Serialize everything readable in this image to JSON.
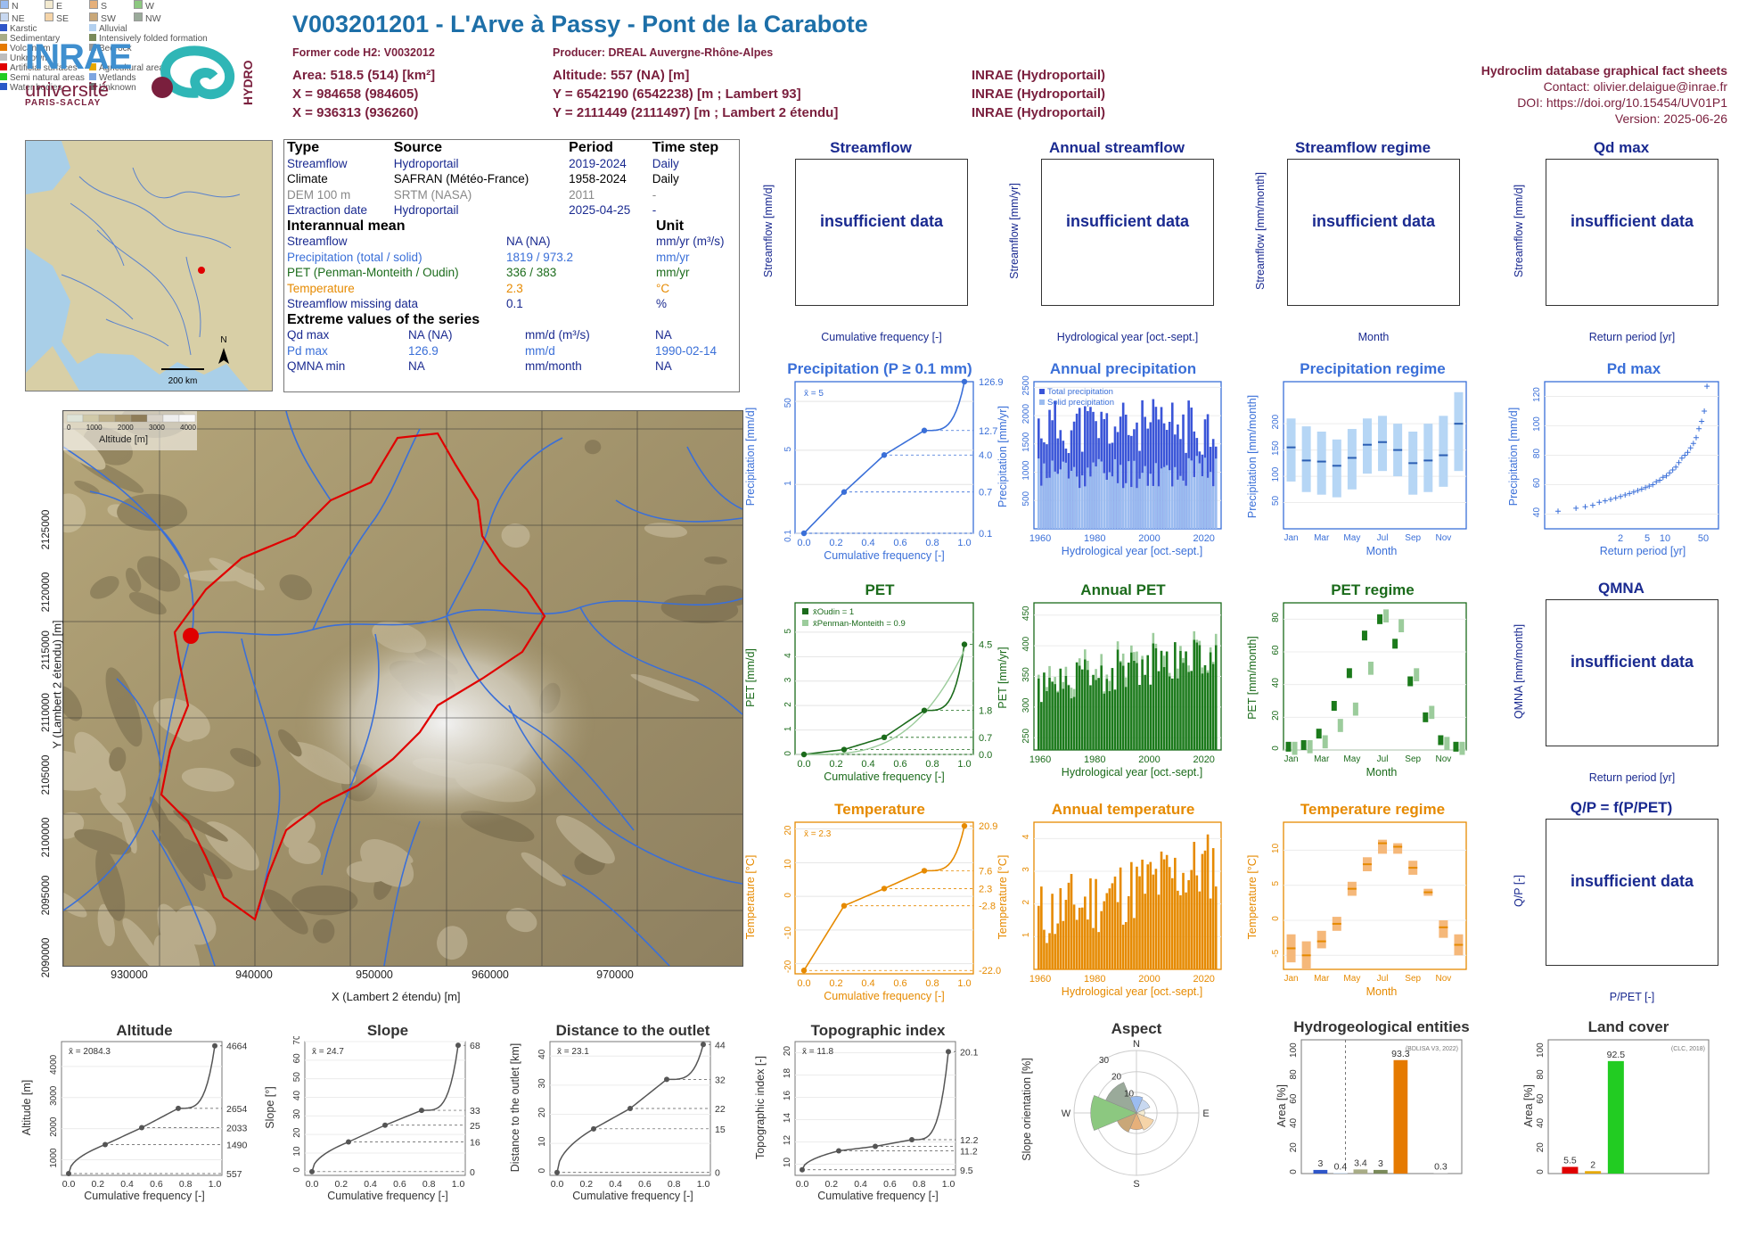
{
  "header": {
    "title": "V003201201 - L'Arve à Passy - Pont de la Carabote",
    "former_code": "Former code H2: V0032012",
    "producer": "Producer: DREAL Auvergne-Rhône-Alpes",
    "area": "Area: 518.5 (514) [km²]",
    "x93": "X = 984658 (984605)",
    "x2e": "X = 936313 (936260)",
    "altitude": "Altitude: 557 (NA) [m]",
    "y93": "Y = 6542190 (6542238) [m ; Lambert 93]",
    "y2e": "Y = 2111449 (2111497) [m ; Lambert 2 étendu]",
    "src1": "INRAE (Hydroportail)",
    "src2": "INRAE (Hydroportail)",
    "src3": "INRAE (Hydroportail)",
    "db": "Hydroclim database graphical fact sheets",
    "contact": "Contact: olivier.delaigue@inrae.fr",
    "doi": "DOI: https://doi.org/10.15454/UV01P1",
    "version": "Version: 2025-06-26"
  },
  "logos": {
    "inrae": "INRAE",
    "universite": "université",
    "paris_saclay": "PARIS-SACLAY",
    "hydro": "HYDRO"
  },
  "inset_map": {
    "north": "N",
    "scale": "200 km",
    "colors": {
      "sea": "#a9cfe8",
      "land": "#d8cfa6",
      "rivers": "#3a6fd8",
      "station": "#e00000"
    }
  },
  "info": {
    "headers": [
      "Type",
      "Source",
      "Period",
      "Time step"
    ],
    "rows": [
      [
        "Streamflow",
        "Hydroportail",
        "2019-2024",
        "Daily"
      ],
      [
        "Climate",
        "SAFRAN (Météo-France)",
        "1958-2024",
        "Daily"
      ],
      [
        "DEM 100 m",
        "SRTM (NASA)",
        "2011",
        "-"
      ],
      [
        "Extraction date",
        "Hydroportail",
        "2025-04-25",
        "-"
      ]
    ],
    "mean_title": "Interannual mean",
    "unit_title": "Unit",
    "means": [
      [
        "Streamflow",
        "NA (NA)",
        "mm/yr (m³/s)"
      ],
      [
        "Precipitation (total / solid)",
        "1819 / 973.2",
        "mm/yr"
      ],
      [
        "PET (Penman-Monteith / Oudin)",
        "336 / 383",
        "mm/yr"
      ],
      [
        "Temperature",
        "2.3",
        "°C"
      ],
      [
        "Streamflow missing data",
        "0.1",
        "%"
      ]
    ],
    "extreme_title": "Extreme values of the series",
    "extremes": [
      [
        "Qd max",
        "NA (NA)",
        "mm/d (m³/s)",
        "NA"
      ],
      [
        "Pd max",
        "126.9",
        "mm/d",
        "1990-02-14"
      ],
      [
        "QMNA min",
        "NA",
        "mm/month",
        "NA"
      ]
    ]
  },
  "big_map": {
    "xlabel": "X (Lambert 2 étendu) [m]",
    "ylabel": "Y (Lambert 2 étendu) [m]",
    "xticks": [
      "930000",
      "940000",
      "950000",
      "960000",
      "970000"
    ],
    "yticks": [
      "2090000",
      "2095000",
      "2100000",
      "2105000",
      "2110000",
      "2115000",
      "2120000",
      "2125000"
    ],
    "legend_title": "Altitude [m]",
    "legend_ticks": [
      "0",
      "1000",
      "2000",
      "3000",
      "4000"
    ],
    "colors": {
      "basin": "#e00000",
      "river": "#3a6fd8"
    }
  },
  "panels": {
    "streamflow": {
      "title": "Streamflow",
      "ylabel": "Streamflow [mm/d]",
      "xlabel": "Cumulative frequency [-]",
      "msg": "insufficient data"
    },
    "annual_streamflow": {
      "title": "Annual streamflow",
      "ylabel": "Streamflow [mm/yr]",
      "xlabel": "Hydrological year [oct.-sept.]",
      "msg": "insufficient data"
    },
    "streamflow_regime": {
      "title": "Streamflow regime",
      "ylabel": "Streamflow [mm/month]",
      "xlabel": "Month",
      "msg": "insufficient data"
    },
    "qd_max": {
      "title": "Qd max",
      "ylabel": "Streamflow [mm/d]",
      "xlabel": "Return period [yr]",
      "msg": "insufficient data"
    },
    "precip": {
      "title": "Precipitation (P ≥ 0.1 mm)",
      "ylabel": "Precipitation [mm/d]",
      "xlabel": "Cumulative frequency [-]",
      "mean": "x̄ = 5"
    },
    "annual_precip": {
      "title": "Annual precipitation",
      "ylabel": "Precipitation [mm/yr]",
      "xlabel": "Hydrological year [oct.-sept.]",
      "legend": [
        "Total precipitation",
        "Solid precipitation"
      ]
    },
    "precip_regime": {
      "title": "Precipitation regime",
      "ylabel": "Precipitation [mm/month]",
      "xlabel": "Month"
    },
    "pd_max": {
      "title": "Pd max",
      "ylabel": "Precipitation [mm/d]",
      "xlabel": "Return period [yr]"
    },
    "pet": {
      "title": "PET",
      "ylabel": "PET [mm/d]",
      "xlabel": "Cumulative frequency [-]",
      "legend": [
        "x̄Oudin = 1",
        "x̄Penman-Monteith = 0.9"
      ]
    },
    "annual_pet": {
      "title": "Annual PET",
      "ylabel": "PET [mm/yr]",
      "xlabel": "Hydrological year [oct.-sept.]"
    },
    "pet_regime": {
      "title": "PET regime",
      "ylabel": "PET [mm/month]",
      "xlabel": "Month"
    },
    "qmna": {
      "title": "QMNA",
      "ylabel": "QMNA [mm/month]",
      "xlabel": "Return period [yr]",
      "msg": "insufficient data"
    },
    "temp": {
      "title": "Temperature",
      "ylabel": "Temperature [°C]",
      "xlabel": "Cumulative frequency [-]",
      "mean": "x̄ = 2.3"
    },
    "annual_temp": {
      "title": "Annual temperature",
      "ylabel": "Temperature [°C]",
      "xlabel": "Hydrological year [oct.-sept.]"
    },
    "temp_regime": {
      "title": "Temperature regime",
      "ylabel": "Temperature [°C]",
      "xlabel": "Month"
    },
    "qp": {
      "title": "Q/P = f(P/PET)",
      "ylabel": "Q/P [-]",
      "xlabel": "P/PET [-]",
      "msg": "insufficient data"
    },
    "altitude": {
      "title": "Altitude",
      "ylabel": "Altitude [m]",
      "xlabel": "Cumulative frequency [-]",
      "mean": "x̄ = 2084.3"
    },
    "slope": {
      "title": "Slope",
      "ylabel": "Slope [°]",
      "xlabel": "Cumulative frequency [-]",
      "mean": "x̄ = 24.7"
    },
    "distance": {
      "title": "Distance to the outlet",
      "ylabel": "Distance to the outlet [km]",
      "xlabel": "Cumulative frequency [-]",
      "mean": "x̄ = 23.1"
    },
    "topo": {
      "title": "Topographic index",
      "ylabel": "Topographic index [-]",
      "xlabel": "Cumulative frequency [-]",
      "mean": "x̄ = 11.8"
    },
    "aspect": {
      "title": "Aspect",
      "ylabel": "Slope orientation [%]"
    },
    "hydrogeo": {
      "title": "Hydrogeological entities",
      "ylabel": "Area [%]",
      "source": "(BDLISA V3, 2022)"
    },
    "landcover": {
      "title": "Land cover",
      "ylabel": "Area [%]",
      "source": "(CLC, 2018)"
    }
  },
  "chart_data": [
    {
      "id": "precip",
      "type": "line",
      "x": [
        0,
        0.25,
        0.5,
        0.75,
        1
      ],
      "y": [
        0.1,
        0.7,
        4.0,
        12.7,
        126.9
      ],
      "scale": "log",
      "ylim": [
        0.1,
        126.9
      ],
      "yticks": [
        0.1,
        1,
        5,
        50
      ],
      "right_labels": [
        "126.9",
        "12.7",
        "4.0",
        "0.7",
        "0.1"
      ],
      "xticks": [
        0,
        0.2,
        0.4,
        0.6,
        0.8,
        1
      ],
      "color": "#3a6fd8"
    },
    {
      "id": "annual_precip",
      "type": "bar",
      "x_start": 1959,
      "x_end": 2024,
      "total_range": [
        1300,
        2300
      ],
      "solid_range": [
        700,
        1300
      ],
      "ylim": [
        0,
        2600
      ],
      "yticks": [
        500,
        1000,
        1500,
        2000,
        2500
      ],
      "xticks": [
        1960,
        1980,
        2000,
        2020
      ],
      "colors": [
        "#3a55d8",
        "#9bbcf0"
      ]
    },
    {
      "id": "precip_regime",
      "type": "boxplot",
      "categories": [
        "Jan",
        "Feb",
        "Mar",
        "Apr",
        "May",
        "Jun",
        "Jul",
        "Aug",
        "Sep",
        "Oct",
        "Nov",
        "Dec"
      ],
      "median": [
        155,
        130,
        128,
        120,
        135,
        160,
        165,
        150,
        125,
        130,
        140,
        200
      ],
      "q1": [
        90,
        70,
        65,
        60,
        75,
        105,
        110,
        100,
        65,
        70,
        80,
        110
      ],
      "q3": [
        210,
        195,
        185,
        170,
        190,
        210,
        215,
        200,
        185,
        200,
        215,
        260
      ],
      "ylim": [
        0,
        280
      ],
      "yticks": [
        50,
        100,
        150,
        200
      ],
      "color": "#b6d6f5",
      "median_color": "#2c5fb3"
    },
    {
      "id": "pd_max",
      "type": "scatter",
      "xlabel_ticks": [
        "2",
        "5",
        "10",
        "50"
      ],
      "yticks": [
        40,
        60,
        80,
        100,
        120
      ],
      "ylim": [
        30,
        130
      ],
      "color": "#3a6fd8",
      "values": [
        42,
        44,
        45,
        46,
        48,
        49,
        50,
        51,
        52,
        53,
        54,
        55,
        56,
        57,
        58,
        59,
        60,
        62,
        63,
        65,
        66,
        68,
        70,
        72,
        75,
        78,
        80,
        82,
        85,
        88,
        92,
        98,
        103,
        110,
        126.9
      ]
    },
    {
      "id": "pet",
      "type": "line",
      "x": [
        0,
        0.25,
        0.5,
        0.75,
        1
      ],
      "y": [
        0.0,
        0.2,
        0.7,
        1.8,
        4.5
      ],
      "ylim": [
        0,
        6.2
      ],
      "yticks": [
        0,
        1,
        2,
        3,
        4,
        5
      ],
      "right_labels": [
        "4.5",
        "1.8",
        "0.7",
        "0.0"
      ],
      "xticks": [
        0,
        0.2,
        0.4,
        0.6,
        0.8,
        1
      ],
      "color": "#1b6b1b"
    },
    {
      "id": "annual_pet",
      "type": "bar",
      "x_start": 1959,
      "x_end": 2024,
      "range": [
        300,
        420
      ],
      "ylim": [
        230,
        470
      ],
      "yticks": [
        250,
        300,
        350,
        400,
        450
      ],
      "xticks": [
        1960,
        1980,
        2000,
        2020
      ],
      "colors": [
        "#1b7a1b",
        "#9ccc9c"
      ]
    },
    {
      "id": "pet_regime",
      "type": "boxplot",
      "categories": [
        "Jan",
        "Feb",
        "Mar",
        "Apr",
        "May",
        "Jun",
        "Jul",
        "Aug",
        "Sep",
        "Oct",
        "Nov",
        "Dec"
      ],
      "pm": [
        2,
        3,
        10,
        27,
        47,
        70,
        80,
        65,
        42,
        20,
        6,
        2
      ],
      "oudin": [
        1,
        2,
        5,
        15,
        25,
        50,
        82,
        76,
        46,
        23,
        4,
        1
      ],
      "ylim": [
        0,
        90
      ],
      "yticks": [
        0,
        20,
        40,
        60,
        80
      ],
      "colors": [
        "#1b7a1b",
        "#9ccc9c"
      ]
    },
    {
      "id": "temp",
      "type": "line",
      "x": [
        0,
        0.25,
        0.5,
        0.75,
        1
      ],
      "y": [
        -22.0,
        -2.8,
        2.3,
        7.6,
        20.9
      ],
      "ylim": [
        -23,
        22
      ],
      "yticks": [
        -20,
        -10,
        0,
        10,
        20
      ],
      "right_labels": [
        "20.9",
        "7.6",
        "2.3",
        "-2.8",
        "-22.0"
      ],
      "xticks": [
        0,
        0.2,
        0.4,
        0.6,
        0.8,
        1
      ],
      "color": "#e68a00"
    },
    {
      "id": "annual_temp",
      "type": "bar",
      "x_start": 1959,
      "x_end": 2024,
      "range": [
        0.5,
        4.2
      ],
      "ylim": [
        0,
        4.5
      ],
      "yticks": [
        1,
        2,
        3,
        4
      ],
      "xticks": [
        1960,
        1980,
        2000,
        2020
      ],
      "color": "#e68a00"
    },
    {
      "id": "temp_regime",
      "type": "boxplot",
      "categories": [
        "Jan",
        "Feb",
        "Mar",
        "Apr",
        "May",
        "Jun",
        "Jul",
        "Aug",
        "Sep",
        "Oct",
        "Nov",
        "Dec"
      ],
      "median": [
        -4,
        -5,
        -3,
        -0.5,
        4.5,
        8,
        11,
        10.5,
        7.5,
        4,
        -1,
        -3.5
      ],
      "q1": [
        -6,
        -7,
        -4,
        -1.5,
        3.5,
        7,
        9.5,
        9.5,
        6.5,
        3.5,
        -2.5,
        -5
      ],
      "q3": [
        -2,
        -3,
        -1.5,
        0.5,
        5.5,
        9,
        11.5,
        11,
        8.5,
        4.5,
        0,
        -2
      ],
      "ylim": [
        -7,
        14
      ],
      "yticks": [
        -5,
        0,
        5,
        10
      ],
      "color": "#f5b87a",
      "median_color": "#e68a00"
    },
    {
      "id": "altitude",
      "type": "line",
      "x": [
        0,
        0.25,
        0.5,
        0.75,
        1
      ],
      "y": [
        557,
        1490,
        2033,
        2654,
        4664
      ],
      "ylim": [
        500,
        4800
      ],
      "yticks": [
        1000,
        2000,
        3000,
        4000
      ],
      "right_labels": [
        "4664",
        "2654",
        "2033",
        "1490",
        "557"
      ],
      "xticks": [
        0,
        0.2,
        0.4,
        0.6,
        0.8,
        1
      ]
    },
    {
      "id": "slope",
      "type": "line",
      "x": [
        0,
        0.25,
        0.5,
        0.75,
        1
      ],
      "y": [
        0,
        16,
        25,
        33,
        68
      ],
      "ylim": [
        -2,
        70
      ],
      "yticks": [
        0,
        10,
        20,
        30,
        40,
        50,
        60,
        70
      ],
      "right_labels": [
        "68",
        "33",
        "25",
        "16",
        "0"
      ],
      "xticks": [
        0,
        0.2,
        0.4,
        0.6,
        0.8,
        1
      ]
    },
    {
      "id": "distance",
      "type": "line",
      "x": [
        0,
        0.25,
        0.5,
        0.75,
        1
      ],
      "y": [
        0,
        15,
        22,
        32,
        44
      ],
      "ylim": [
        -1,
        45
      ],
      "yticks": [
        0,
        10,
        20,
        30,
        40
      ],
      "right_labels": [
        "44",
        "32",
        "22",
        "15",
        "0"
      ],
      "xticks": [
        0,
        0.2,
        0.4,
        0.6,
        0.8,
        1
      ]
    },
    {
      "id": "topo",
      "type": "line",
      "x": [
        0,
        0.25,
        0.5,
        0.75,
        1
      ],
      "y": [
        9.5,
        11.2,
        11.6,
        12.2,
        20.1
      ],
      "ylim": [
        9,
        21
      ],
      "yticks": [
        10,
        12,
        14,
        16,
        18,
        20
      ],
      "right_labels": [
        "20.1",
        "12.2",
        "11.2",
        "9.5"
      ],
      "xticks": [
        0,
        0.2,
        0.4,
        0.6,
        0.8,
        1
      ]
    },
    {
      "id": "aspect",
      "type": "pie",
      "categories": [
        "N",
        "NE",
        "E",
        "SE",
        "S",
        "SW",
        "W",
        "NW"
      ],
      "values": [
        8,
        7,
        4,
        9,
        8,
        10,
        22,
        16
      ],
      "ring_labels": [
        "10",
        "20",
        "30"
      ],
      "colors": [
        "#9bbcf0",
        "#c8d8f0",
        "#f3ead0",
        "#f5d4a8",
        "#e6b07a",
        "#c9a778",
        "#8cc880",
        "#9aaa9a"
      ]
    },
    {
      "id": "hydrogeo",
      "type": "bar",
      "categories": [
        "Karstic",
        "Alluvial",
        "Sedimentary",
        "Intensively folded formation",
        "Volcanism",
        "Bedrock",
        "Unknown"
      ],
      "values": [
        3,
        0.4,
        3.4,
        3,
        93.3,
        0,
        0.3
      ],
      "labels": [
        "3",
        "0.4",
        "3.4",
        "3",
        "93.3",
        "",
        "0.3"
      ],
      "ylim": [
        0,
        110
      ],
      "yticks": [
        0,
        20,
        40,
        60,
        80,
        100
      ],
      "colors": [
        "#2f56c8",
        "#b3d0ef",
        "#a8ac86",
        "#7a8a5a",
        "#e57a00",
        "#999999",
        "#bdbdbd"
      ]
    },
    {
      "id": "landcover",
      "type": "bar",
      "categories": [
        "Artificial surfaces",
        "Agricultural areas",
        "Semi natural areas",
        "Wetlands",
        "Water bodies",
        "Unknown"
      ],
      "values": [
        5.5,
        2,
        92.5,
        0,
        0,
        0
      ],
      "labels": [
        "5.5",
        "2",
        "92.5",
        "",
        "",
        ""
      ],
      "ylim": [
        0,
        110
      ],
      "yticks": [
        0,
        20,
        40,
        60,
        80,
        100
      ],
      "colors": [
        "#e00000",
        "#e6a800",
        "#22cc22",
        "#7fa6e0",
        "#2a58c8",
        "#777777"
      ]
    }
  ]
}
